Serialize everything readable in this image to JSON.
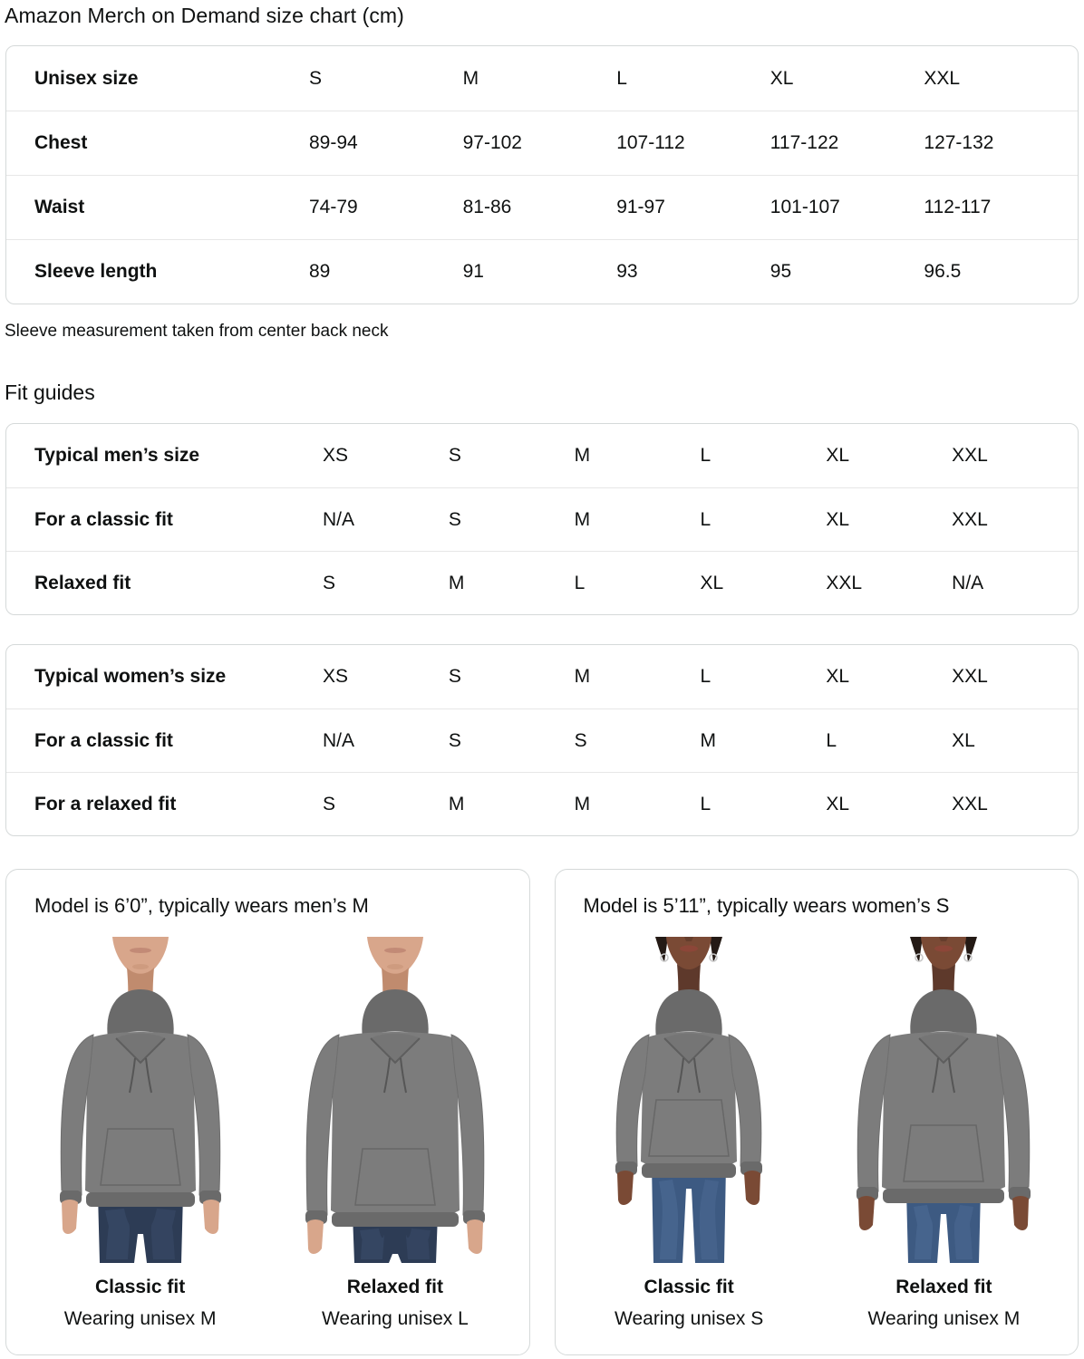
{
  "page": {
    "title": "Amazon Merch on Demand size chart (cm)",
    "note": "Sleeve measurement taken from center back neck",
    "fit_guides_heading": "Fit guides"
  },
  "size_chart": {
    "rows": [
      {
        "label": "Unisex size",
        "values": [
          "S",
          "M",
          "L",
          "XL",
          "XXL"
        ]
      },
      {
        "label": "Chest",
        "values": [
          "89-94",
          "97-102",
          "107-112",
          "117-122",
          "127-132"
        ]
      },
      {
        "label": "Waist",
        "values": [
          "74-79",
          "81-86",
          "91-97",
          "101-107",
          "112-117"
        ]
      },
      {
        "label": "Sleeve length",
        "values": [
          "89",
          "91",
          "93",
          "95",
          "96.5"
        ]
      }
    ]
  },
  "fit_guide_men": {
    "rows": [
      {
        "label": "Typical men’s size",
        "values": [
          "XS",
          "S",
          "M",
          "L",
          "XL",
          "XXL"
        ]
      },
      {
        "label": "For a classic fit",
        "values": [
          "N/A",
          "S",
          "M",
          "L",
          "XL",
          "XXL"
        ]
      },
      {
        "label": "Relaxed fit",
        "values": [
          "S",
          "M",
          "L",
          "XL",
          "XXL",
          "N/A"
        ]
      }
    ]
  },
  "fit_guide_women": {
    "rows": [
      {
        "label": "Typical women’s size",
        "values": [
          "XS",
          "S",
          "M",
          "L",
          "XL",
          "XXL"
        ]
      },
      {
        "label": "For a classic fit",
        "values": [
          "N/A",
          "S",
          "S",
          "M",
          "L",
          "XL"
        ]
      },
      {
        "label": "For a relaxed fit",
        "values": [
          "S",
          "M",
          "M",
          "L",
          "XL",
          "XXL"
        ]
      }
    ]
  },
  "model_cards": [
    {
      "title": "Model is 6’0”, typically wears men’s M",
      "figures": [
        {
          "fit_label": "Classic fit",
          "wearing": "Wearing unisex M"
        },
        {
          "fit_label": "Relaxed fit",
          "wearing": "Wearing unisex L"
        }
      ]
    },
    {
      "title": "Model is 5’11”, typically wears women’s S",
      "figures": [
        {
          "fit_label": "Classic fit",
          "wearing": "Wearing unisex S"
        },
        {
          "fit_label": "Relaxed fit",
          "wearing": "Wearing unisex M"
        }
      ]
    }
  ],
  "colors": {
    "text": "#0f1111",
    "table_border": "#d5d9d9",
    "row_divider": "#e7e7e7",
    "hoodie_gray": "#7c7c7c",
    "mens_jeans": "#2d3c55",
    "womens_jeans": "#3d5a82"
  }
}
